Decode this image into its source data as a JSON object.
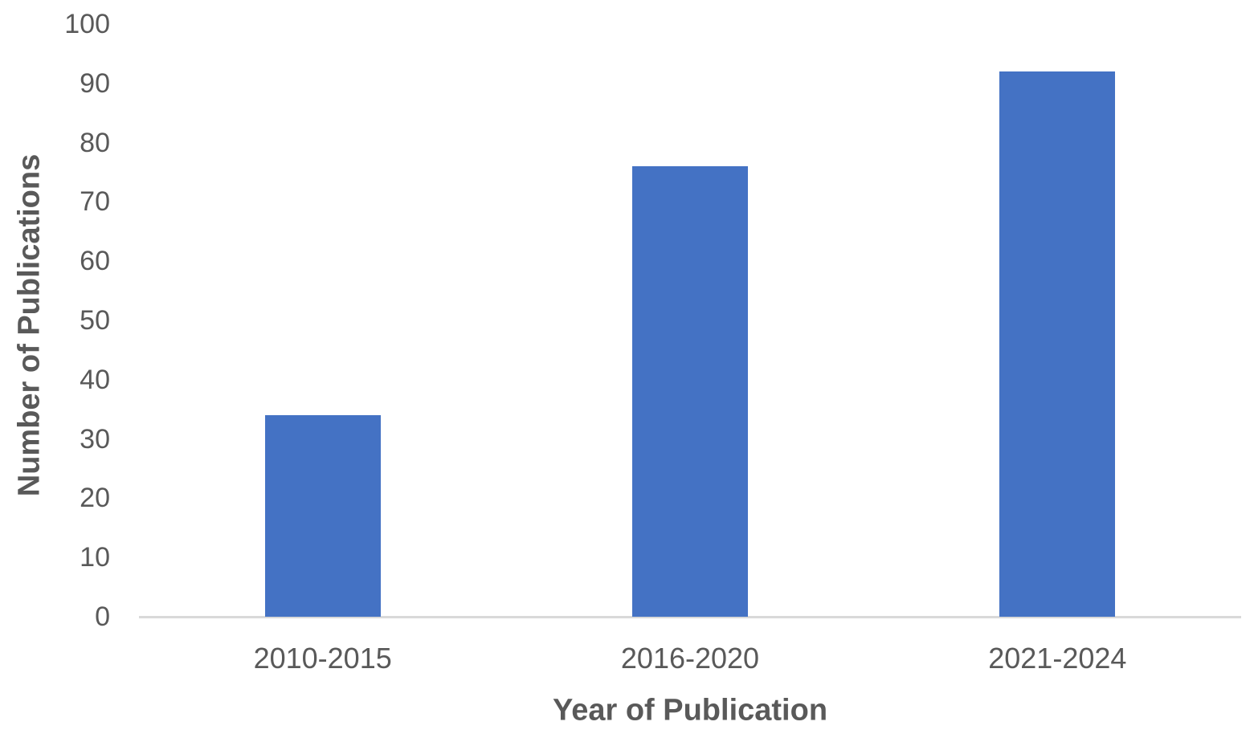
{
  "chart_data": {
    "type": "bar",
    "title": "",
    "categories": [
      "2010-2015",
      "2016-2020",
      "2021-2024"
    ],
    "values": [
      34,
      76,
      92
    ],
    "xlabel": "Year of Publication",
    "ylabel": "Number of Publications",
    "ylim": [
      0,
      100
    ],
    "yticks": [
      0,
      10,
      20,
      30,
      40,
      50,
      60,
      70,
      80,
      90,
      100
    ],
    "grid": false,
    "legend": false,
    "colors": {
      "bar_fill": "#4472C4",
      "text": "#595959",
      "axis_line": "#D9D9D9",
      "background": "#FFFFFF"
    }
  }
}
